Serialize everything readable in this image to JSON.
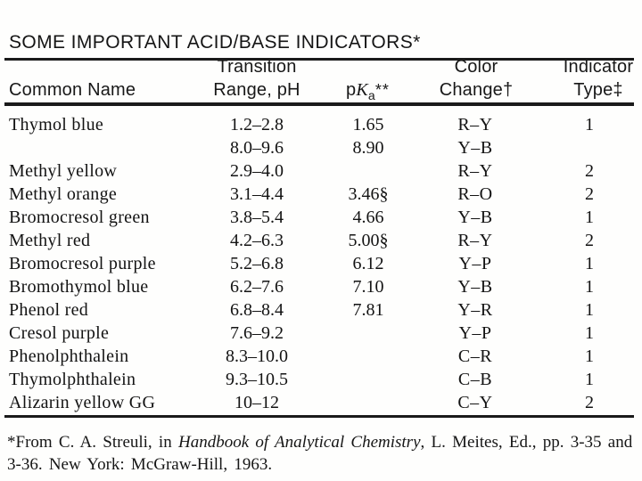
{
  "title": "SOME IMPORTANT ACID/BASE INDICATORS*",
  "header": {
    "common_name": "Common Name",
    "transition_line1": "Transition",
    "transition_line2": "Range, pH",
    "pka_p": "p",
    "pka_k": "K",
    "pka_sub": "a",
    "pka_stars": "**",
    "color_line1": "Color",
    "color_line2": "Change†",
    "indicator_line1": "Indicator",
    "indicator_line2": "Type‡"
  },
  "table": {
    "columns": [
      "Common Name",
      "Transition Range, pH",
      "pKa**",
      "Color Change†",
      "Indicator Type‡"
    ],
    "rows": [
      {
        "name": "Thymol blue",
        "range": "1.2–2.8",
        "pka": "1.65",
        "color": "R–Y",
        "type": "1"
      },
      {
        "name": "",
        "range": "8.0–9.6",
        "pka": "8.90",
        "color": "Y–B",
        "type": ""
      },
      {
        "name": "Methyl yellow",
        "range": "2.9–4.0",
        "pka": "",
        "color": "R–Y",
        "type": "2"
      },
      {
        "name": "Methyl orange",
        "range": "3.1–4.4",
        "pka": "3.46§",
        "color": "R–O",
        "type": "2"
      },
      {
        "name": "Bromocresol green",
        "range": "3.8–5.4",
        "pka": "4.66",
        "color": "Y–B",
        "type": "1"
      },
      {
        "name": "Methyl red",
        "range": "4.2–6.3",
        "pka": "5.00§",
        "color": "R–Y",
        "type": "2"
      },
      {
        "name": "Bromocresol purple",
        "range": "5.2–6.8",
        "pka": "6.12",
        "color": "Y–P",
        "type": "1"
      },
      {
        "name": "Bromothymol blue",
        "range": "6.2–7.6",
        "pka": "7.10",
        "color": "Y–B",
        "type": "1"
      },
      {
        "name": "Phenol red",
        "range": "6.8–8.4",
        "pka": "7.81",
        "color": "Y–R",
        "type": "1"
      },
      {
        "name": "Cresol purple",
        "range": "7.6–9.2",
        "pka": "",
        "color": "Y–P",
        "type": "1"
      },
      {
        "name": "Phenolphthalein",
        "range": "8.3–10.0",
        "pka": "",
        "color": "C–R",
        "type": "1"
      },
      {
        "name": "Thymolphthalein",
        "range": "9.3–10.5",
        "pka": "",
        "color": "C–B",
        "type": "1"
      },
      {
        "name": "Alizarin yellow GG",
        "range": "10–12",
        "pka": "",
        "color": "C–Y",
        "type": "2"
      }
    ]
  },
  "footnote": {
    "line1_pre": "*From C. A. Streuli, in ",
    "line1_italic": "Handbook of Analytical Chemistry",
    "line1_post": ", L. Meites, Ed., pp. 3-35 and",
    "line2": "3-36. New York: McGraw-Hill, 1963."
  },
  "colors": {
    "background": "#fefefd",
    "text": "#161616",
    "rule": "#1a1a1a"
  }
}
